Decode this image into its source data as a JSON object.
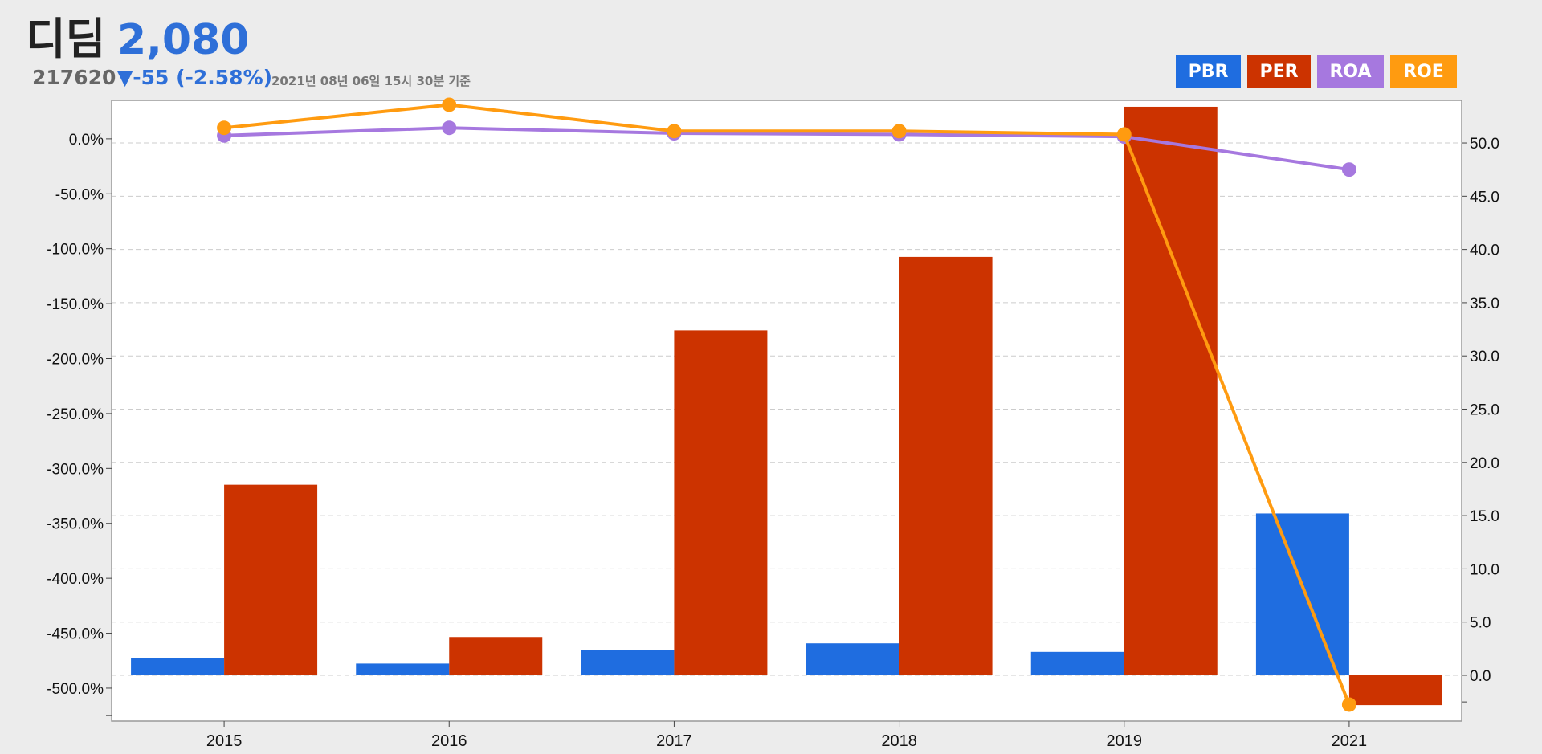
{
  "header": {
    "company": "디딤",
    "price": "2,080",
    "code": "217620",
    "change": "▼-55 (-2.58%)",
    "as_of": "2021년 08년 06일 15시 30분 기준"
  },
  "colors": {
    "PBR": "#1f6de0",
    "PER": "#cc3300",
    "ROA": "#a678df",
    "ROE": "#ff9b10",
    "price": "#2e6fd8"
  },
  "chart_data": {
    "type": "bar",
    "categories": [
      "2015",
      "2016",
      "2017",
      "2018",
      "2019",
      "2021"
    ],
    "legend": [
      "PBR",
      "PER",
      "ROA",
      "ROE"
    ],
    "legend_position": "top-right",
    "grid": true,
    "y_left": {
      "ticks": [
        "0.0%",
        "-50.0%",
        "-100.0%",
        "-150.0%",
        "-200.0%",
        "-250.0%",
        "-300.0%",
        "-350.0%",
        "-400.0%",
        "-450.0%",
        "-500.0%"
      ],
      "ylim": [
        -530,
        35
      ]
    },
    "y_right": {
      "ticks": [
        "0.0",
        "5.0",
        "10.0",
        "15.0",
        "20.0",
        "25.0",
        "30.0",
        "35.0",
        "40.0",
        "45.0",
        "50.0"
      ],
      "ylim": [
        -4.3,
        54
      ]
    },
    "series": [
      {
        "name": "PBR",
        "type": "bar",
        "axis": "right",
        "values": [
          1.6,
          1.1,
          2.4,
          3.0,
          2.2,
          15.2
        ]
      },
      {
        "name": "PER",
        "type": "bar",
        "axis": "right",
        "values": [
          17.9,
          3.6,
          32.4,
          39.3,
          53.4,
          -2.8
        ]
      },
      {
        "name": "ROA",
        "type": "line",
        "axis": "left",
        "values": [
          3,
          10,
          5,
          4,
          2,
          -28
        ]
      },
      {
        "name": "ROE",
        "type": "line",
        "axis": "left",
        "values": [
          10,
          31,
          7,
          7,
          4,
          -515
        ]
      }
    ]
  }
}
